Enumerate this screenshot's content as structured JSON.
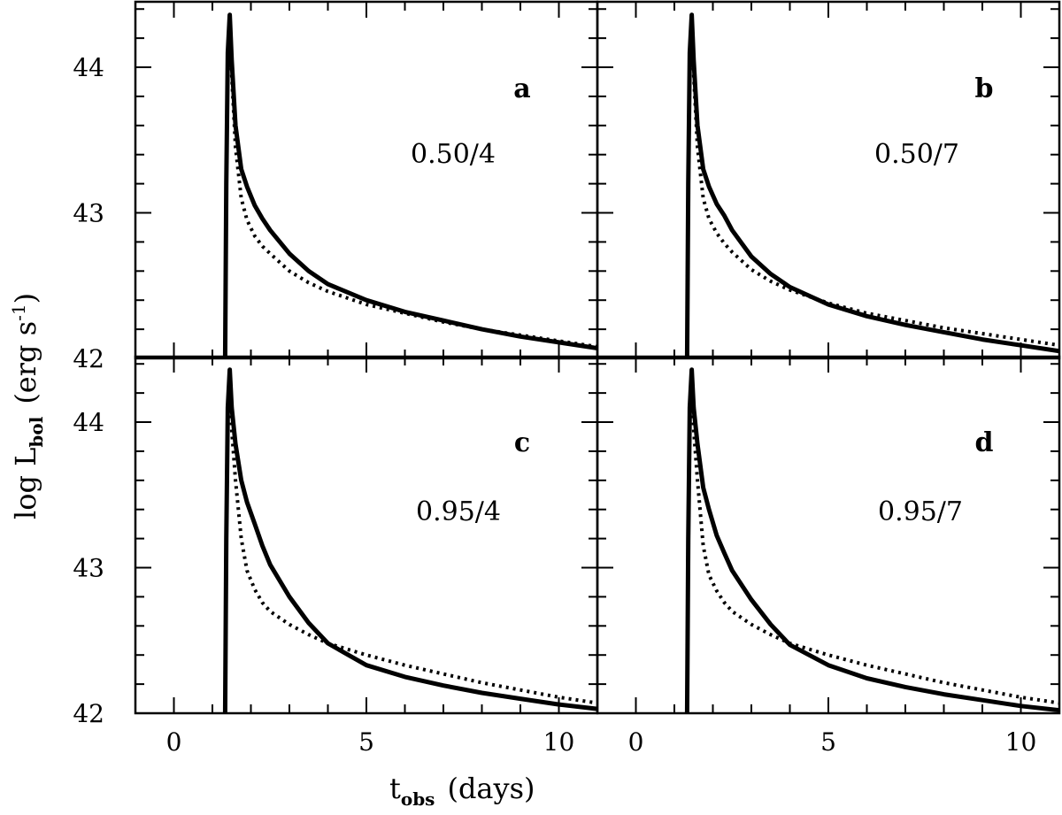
{
  "chart_data": {
    "type": "line",
    "xlabel": "t",
    "xlabel_sub": "obs",
    "xlabel_units": "(days)",
    "ylabel_main": "log L",
    "ylabel_sub": "bol",
    "ylabel_units": "(erg s",
    "ylabel_units_sup": "-1",
    "ylabel_units_close": ")",
    "xlim": [
      -1,
      11
    ],
    "ylim": [
      42,
      44.45
    ],
    "xticks_major": [
      0,
      5,
      10
    ],
    "xtick_labels": [
      "0",
      "5",
      "10"
    ],
    "yticks_major": [
      42,
      43,
      44
    ],
    "ytick_labels": [
      "42",
      "43",
      "44"
    ],
    "panels": [
      {
        "letter": "a",
        "label": "0.50/4",
        "series": [
          {
            "style": "solid",
            "x": [
              1.33,
              1.36,
              1.4,
              1.45,
              1.5,
              1.6,
              1.75,
              1.9,
              2.1,
              2.3,
              2.5,
              3,
              3.5,
              4,
              5,
              6,
              7,
              8,
              9,
              10,
              11
            ],
            "y": [
              42.0,
              43.2,
              44.1,
              44.36,
              44.05,
              43.6,
              43.3,
              43.18,
              43.05,
              42.96,
              42.88,
              42.72,
              42.6,
              42.51,
              42.4,
              42.32,
              42.26,
              42.2,
              42.15,
              42.11,
              42.07
            ]
          },
          {
            "style": "dotted",
            "x": [
              1.33,
              1.36,
              1.4,
              1.45,
              1.5,
              1.6,
              1.75,
              1.9,
              2.1,
              2.3,
              2.5,
              3,
              3.5,
              4,
              5,
              6,
              7,
              8,
              9,
              10,
              11
            ],
            "y": [
              42.0,
              43.2,
              44.1,
              44.36,
              43.95,
              43.45,
              43.1,
              42.95,
              42.84,
              42.77,
              42.72,
              42.6,
              42.52,
              42.46,
              42.37,
              42.31,
              42.25,
              42.2,
              42.16,
              42.12,
              42.08
            ]
          }
        ]
      },
      {
        "letter": "b",
        "label": "0.50/7",
        "series": [
          {
            "style": "solid",
            "x": [
              1.33,
              1.36,
              1.4,
              1.45,
              1.5,
              1.6,
              1.75,
              1.9,
              2.1,
              2.3,
              2.5,
              3,
              3.5,
              4,
              5,
              6,
              7,
              8,
              9,
              10,
              11
            ],
            "y": [
              42.0,
              43.2,
              44.1,
              44.36,
              44.05,
              43.6,
              43.3,
              43.18,
              43.06,
              42.98,
              42.88,
              42.7,
              42.58,
              42.49,
              42.37,
              42.29,
              42.23,
              42.18,
              42.13,
              42.09,
              42.05
            ]
          },
          {
            "style": "dotted",
            "x": [
              1.33,
              1.36,
              1.4,
              1.45,
              1.5,
              1.6,
              1.75,
              1.9,
              2.1,
              2.3,
              2.5,
              3,
              3.5,
              4,
              5,
              6,
              7,
              8,
              9,
              10,
              11
            ],
            "y": [
              42.0,
              43.2,
              44.1,
              44.36,
              43.95,
              43.45,
              43.1,
              42.96,
              42.86,
              42.79,
              42.73,
              42.61,
              42.53,
              42.47,
              42.38,
              42.31,
              42.26,
              42.21,
              42.17,
              42.13,
              42.09
            ]
          }
        ]
      },
      {
        "letter": "c",
        "label": "0.95/4",
        "series": [
          {
            "style": "solid",
            "x": [
              1.33,
              1.36,
              1.4,
              1.45,
              1.5,
              1.6,
              1.75,
              1.9,
              2.1,
              2.3,
              2.5,
              3,
              3.5,
              4,
              5,
              6,
              7,
              8,
              9,
              10,
              11
            ],
            "y": [
              42.0,
              43.2,
              44.1,
              44.36,
              44.1,
              43.85,
              43.6,
              43.45,
              43.3,
              43.15,
              43.02,
              42.8,
              42.62,
              42.48,
              42.33,
              42.25,
              42.19,
              42.14,
              42.1,
              42.06,
              42.03
            ]
          },
          {
            "style": "dotted",
            "x": [
              1.33,
              1.36,
              1.4,
              1.45,
              1.5,
              1.6,
              1.75,
              1.9,
              2.1,
              2.3,
              2.5,
              3,
              3.5,
              4,
              5,
              6,
              7,
              8,
              9,
              10,
              11
            ],
            "y": [
              42.0,
              43.2,
              44.1,
              44.36,
              43.95,
              43.6,
              43.2,
              42.98,
              42.85,
              42.76,
              42.7,
              42.61,
              42.54,
              42.48,
              42.4,
              42.33,
              42.27,
              42.21,
              42.16,
              42.11,
              42.07
            ]
          }
        ]
      },
      {
        "letter": "d",
        "label": "0.95/7",
        "series": [
          {
            "style": "solid",
            "x": [
              1.33,
              1.36,
              1.4,
              1.45,
              1.5,
              1.6,
              1.75,
              1.9,
              2.1,
              2.3,
              2.5,
              3,
              3.5,
              4,
              5,
              6,
              7,
              8,
              9,
              10,
              11
            ],
            "y": [
              42.0,
              43.2,
              44.1,
              44.36,
              44.1,
              43.85,
              43.55,
              43.4,
              43.22,
              43.1,
              42.98,
              42.78,
              42.61,
              42.47,
              42.33,
              42.24,
              42.18,
              42.13,
              42.09,
              42.05,
              42.02
            ]
          },
          {
            "style": "dotted",
            "x": [
              1.33,
              1.36,
              1.4,
              1.45,
              1.5,
              1.6,
              1.75,
              1.9,
              2.1,
              2.3,
              2.5,
              3,
              3.5,
              4,
              5,
              6,
              7,
              8,
              9,
              10,
              11
            ],
            "y": [
              42.0,
              43.2,
              44.1,
              44.36,
              43.95,
              43.6,
              43.15,
              42.95,
              42.84,
              42.76,
              42.7,
              42.61,
              42.54,
              42.48,
              42.4,
              42.33,
              42.27,
              42.21,
              42.16,
              42.11,
              42.07
            ]
          }
        ]
      }
    ]
  }
}
